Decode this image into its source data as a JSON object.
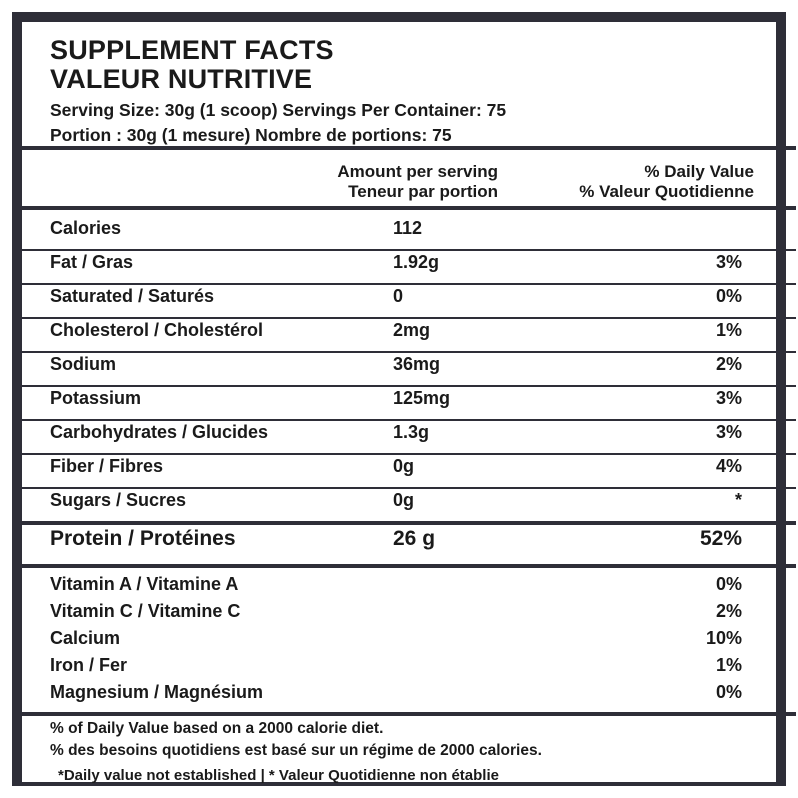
{
  "header": {
    "title_en": "SUPPLEMENT FACTS",
    "title_fr": "VALEUR NUTRITIVE",
    "serving_en": "Serving Size: 30g (1 scoop) Servings Per Container: 75",
    "serving_fr": "Portion : 30g (1 mesure) Nombre de portions: 75"
  },
  "columns": {
    "amount_en": "Amount per serving",
    "amount_fr": "Teneur par portion",
    "dv_en": "% Daily Value",
    "dv_fr": "% Valeur Quotidienne"
  },
  "nutrients": [
    {
      "name": "Calories",
      "amount": "112",
      "dv": ""
    },
    {
      "name": "Fat / Gras",
      "amount": "1.92g",
      "dv": "3%"
    },
    {
      "name": "Saturated / Saturés",
      "amount": "0",
      "dv": "0%"
    },
    {
      "name": "Cholesterol / Cholestérol",
      "amount": "2mg",
      "dv": "1%"
    },
    {
      "name": "Sodium",
      "amount": "36mg",
      "dv": "2%"
    },
    {
      "name": "Potassium",
      "amount": "125mg",
      "dv": "3%"
    },
    {
      "name": "Carbohydrates / Glucides",
      "amount": "1.3g",
      "dv": "3%"
    },
    {
      "name": "Fiber / Fibres",
      "amount": "0g",
      "dv": "4%"
    },
    {
      "name": "Sugars / Sucres",
      "amount": "0g",
      "dv": "*"
    },
    {
      "name": "Protein / Protéines",
      "amount": "26 g",
      "dv": "52%"
    }
  ],
  "vitamins": [
    {
      "name": "Vitamin A / Vitamine A",
      "dv": "0%"
    },
    {
      "name": "Vitamin C / Vitamine C",
      "dv": "2%"
    },
    {
      "name": "Calcium",
      "dv": "10%"
    },
    {
      "name": "Iron / Fer",
      "dv": "1%"
    },
    {
      "name": "Magnesium / Magnésium",
      "dv": "0%"
    }
  ],
  "footer": {
    "line1": "% of Daily Value based on a 2000 calorie diet.",
    "line2": "% des besoins quotidiens est basé sur un régime de 2000 calories.",
    "line3": "*Daily value not established | * Valeur Quotidienne non établie"
  }
}
